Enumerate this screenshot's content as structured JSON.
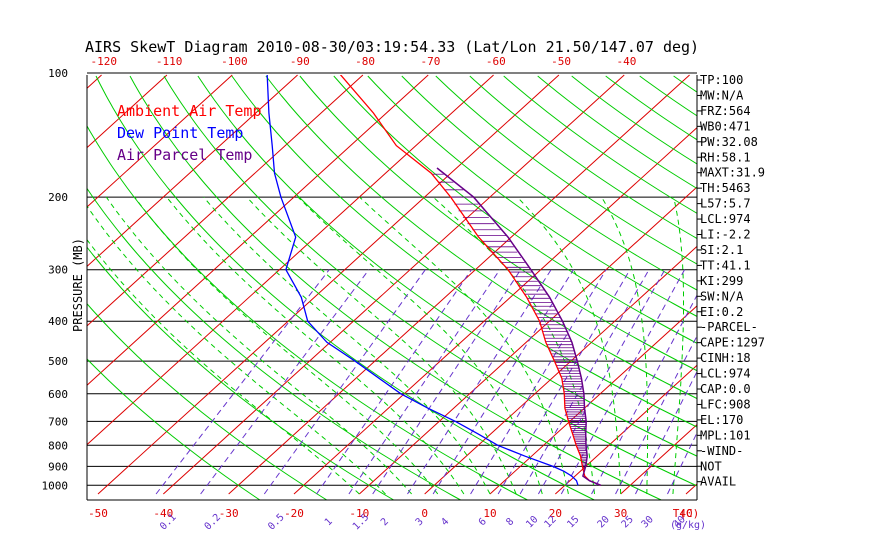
{
  "chart_data": {
    "type": "line",
    "title": "AIRS SkewT Diagram 2010-08-30/03:19:54.33 (Lat/Lon 21.50/147.07 deg)",
    "ylabel": "PRESSURE (MB)",
    "xlabel": "T(C)",
    "mixing_ratio_unit": "(g/kg)",
    "pressure_ticks": [
      100,
      200,
      300,
      400,
      500,
      600,
      700,
      800,
      900,
      1000
    ],
    "top_temp_ticks": [
      -120,
      -110,
      -100,
      -90,
      -80,
      -70,
      -60,
      -50,
      -40
    ],
    "bottom_temp_ticks": [
      -50,
      -40,
      -30,
      -20,
      -10,
      0,
      10,
      20,
      30,
      40
    ],
    "mixing_ratio_ticks": [
      "0.1",
      "0.2",
      "0.5",
      "1",
      "1.5",
      "2",
      "3",
      "4",
      "6",
      "8",
      "10",
      "12",
      "15",
      "20",
      "25",
      "30",
      "40"
    ],
    "legend": [
      "Ambient Air Temp",
      "Dew Point Temp",
      "Air Parcel Temp"
    ],
    "colors": {
      "ambient": "#ff0000",
      "dewpoint": "#0000ff",
      "parcel": "#660088",
      "isotherm": "#dd0000",
      "dry_adiabat": "#00cc00",
      "moist_adiabat": "#00cc00",
      "mixing_ratio": "#6633cc",
      "isobar": "#000000"
    },
    "series": [
      {
        "name": "Ambient Air Temp",
        "points": [
          [
            1000,
            25.5
          ],
          [
            975,
            23
          ],
          [
            950,
            21.5
          ],
          [
            925,
            20.5
          ],
          [
            900,
            19.5
          ],
          [
            850,
            17.5
          ],
          [
            800,
            15
          ],
          [
            750,
            12.5
          ],
          [
            700,
            9.8
          ],
          [
            650,
            7
          ],
          [
            600,
            4.5
          ],
          [
            550,
            1.5
          ],
          [
            500,
            -2.5
          ],
          [
            450,
            -7
          ],
          [
            400,
            -11.5
          ],
          [
            350,
            -17.5
          ],
          [
            300,
            -25
          ],
          [
            250,
            -35
          ],
          [
            200,
            -46
          ],
          [
            175,
            -53
          ],
          [
            150,
            -63
          ],
          [
            125,
            -72
          ],
          [
            100,
            -84
          ]
        ]
      },
      {
        "name": "Dew Point Temp",
        "points": [
          [
            1000,
            22
          ],
          [
            975,
            21
          ],
          [
            950,
            19.5
          ],
          [
            925,
            17.5
          ],
          [
            900,
            15
          ],
          [
            850,
            9
          ],
          [
            800,
            3
          ],
          [
            750,
            -2
          ],
          [
            700,
            -7.5
          ],
          [
            650,
            -14
          ],
          [
            600,
            -20.5
          ],
          [
            550,
            -26.5
          ],
          [
            500,
            -33
          ],
          [
            450,
            -40.5
          ],
          [
            400,
            -47
          ],
          [
            350,
            -52
          ],
          [
            300,
            -59
          ],
          [
            250,
            -63
          ],
          [
            200,
            -72
          ],
          [
            175,
            -77
          ],
          [
            150,
            -82
          ],
          [
            125,
            -88
          ],
          [
            100,
            -95
          ]
        ]
      },
      {
        "name": "Air Parcel Temp",
        "points": [
          [
            1000,
            25.5
          ],
          [
            975,
            23
          ],
          [
            950,
            21.2
          ],
          [
            900,
            20
          ],
          [
            850,
            18.5
          ],
          [
            800,
            16.5
          ],
          [
            750,
            14.5
          ],
          [
            700,
            12.5
          ],
          [
            650,
            10
          ],
          [
            600,
            7.5
          ],
          [
            550,
            4.5
          ],
          [
            500,
            1
          ],
          [
            450,
            -3
          ],
          [
            400,
            -8
          ],
          [
            350,
            -14
          ],
          [
            300,
            -21.5
          ],
          [
            250,
            -30.5
          ],
          [
            200,
            -42.5
          ],
          [
            170,
            -53
          ]
        ]
      }
    ],
    "indices": [
      "TP:100",
      "MW:N/A",
      "FRZ:564",
      "WB0:471",
      "PW:32.08",
      "RH:58.1",
      "MAXT:31.9",
      "TH:5463",
      "L57:5.7",
      "LCL:974",
      "LI:-2.2",
      "SI:2.1",
      "TT:41.1",
      "KI:299",
      "SW:N/A",
      "EI:0.2",
      "-PARCEL-",
      "CAPE:1297",
      "CINH:18",
      "LCL:974",
      "CAP:0.0",
      "LFC:908",
      "EL:170",
      "MPL:101",
      "-WIND-",
      "NOT",
      "AVAIL"
    ]
  }
}
